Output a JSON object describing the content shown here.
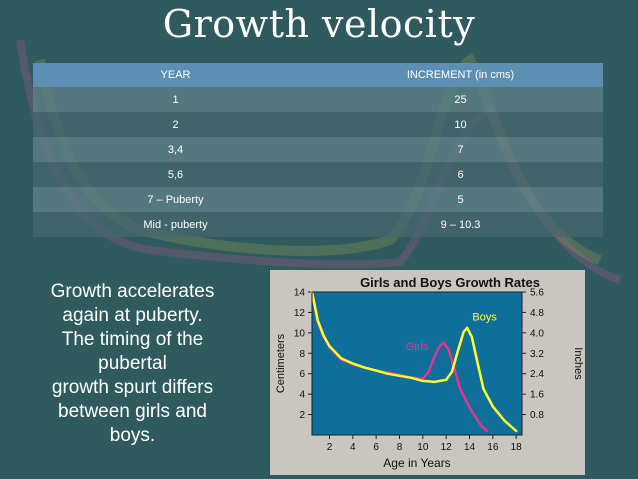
{
  "slide": {
    "title": "Growth velocity",
    "side_text_lines": [
      "Growth accelerates",
      "again at puberty.",
      "The timing of the",
      "pubertal",
      "growth spurt differs",
      "between girls and",
      "boys."
    ]
  },
  "colors": {
    "chart_bg": "#0e6f9b",
    "girls": "#e8358a",
    "boys": "#ffff33",
    "table_header": "#5c8fb3"
  },
  "table": {
    "headers": [
      "YEAR",
      "INCREMENT (in cms)"
    ],
    "rows": [
      [
        "1",
        "25"
      ],
      [
        "2",
        "10"
      ],
      [
        "3,4",
        "7"
      ],
      [
        "5,6",
        "6"
      ],
      [
        "7 – Puberty",
        "5"
      ],
      [
        "Mid - puberty",
        "9 – 10.3"
      ]
    ]
  },
  "chart_data": {
    "type": "line",
    "title": "Girls and Boys Growth Rates",
    "xlabel": "Age in Years",
    "ylabel": "Centimeters",
    "y2label": "Inches",
    "xlim": [
      0.5,
      18.5
    ],
    "ylim": [
      0,
      14
    ],
    "x_ticks": [
      2,
      4,
      6,
      8,
      10,
      12,
      14,
      16,
      18
    ],
    "y_ticks": [
      2,
      4,
      6,
      8,
      10,
      12,
      14
    ],
    "y2_ticks": [
      "0.8",
      "1.6",
      "2.4",
      "3.2",
      "4.0",
      "4.8",
      "5.6"
    ],
    "series": [
      {
        "name": "Girls",
        "x": [
          0.5,
          1,
          1.5,
          2,
          3,
          4,
          5,
          6,
          7,
          8,
          9,
          10,
          10.5,
          11,
          11.5,
          11.8,
          12.2,
          12.7,
          13.2,
          14,
          15,
          15.5
        ],
        "y": [
          14,
          11,
          9.6,
          8.6,
          7.4,
          6.9,
          6.6,
          6.3,
          6.1,
          5.9,
          5.6,
          5.5,
          6.2,
          7.7,
          8.8,
          9.0,
          8.4,
          6.5,
          4.5,
          2.7,
          0.9,
          0.4
        ]
      },
      {
        "name": "Boys",
        "x": [
          0.5,
          1,
          1.5,
          2,
          3,
          4,
          5,
          6,
          7,
          8,
          9,
          10,
          11,
          12,
          12.5,
          13,
          13.5,
          13.8,
          14.2,
          14.7,
          15.2,
          16,
          17,
          18
        ],
        "y": [
          14,
          11.2,
          9.7,
          8.7,
          7.5,
          7.0,
          6.6,
          6.3,
          6.0,
          5.8,
          5.6,
          5.3,
          5.2,
          5.4,
          6.2,
          8.2,
          10.1,
          10.5,
          9.6,
          7.0,
          4.5,
          2.8,
          1.4,
          0.4
        ]
      }
    ],
    "annotations": [
      "Girls",
      "Boys"
    ]
  }
}
